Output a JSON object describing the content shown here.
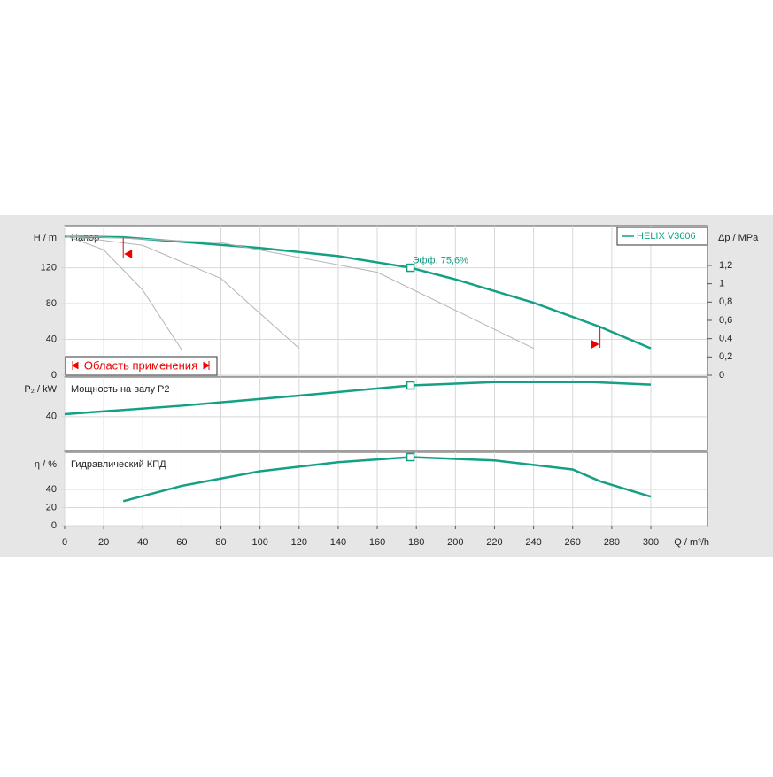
{
  "chart_data": [
    {
      "type": "line",
      "title": "Напор",
      "ylabel": "H / m",
      "y2label": "Δp / MPa",
      "xlim": [
        0,
        329
      ],
      "ylim": [
        0,
        167
      ],
      "yticks": [
        0,
        40,
        80,
        120
      ],
      "y2lim": [
        0,
        1.635
      ],
      "y2ticks": [
        0,
        {
          "value": 0.2,
          "label": "0,2"
        },
        {
          "value": 0.4,
          "label": "0,4"
        },
        {
          "value": 0.6,
          "label": "0,6"
        },
        {
          "value": 0.8,
          "label": "0,8"
        },
        1,
        {
          "value": 1.2,
          "label": "1,2"
        }
      ],
      "grid": true,
      "legend": "upper right",
      "series": [
        {
          "name": "HELIX V3606",
          "color": "#14a085",
          "x": [
            0,
            30,
            60,
            100,
            140,
            177,
            200,
            240,
            274,
            300
          ],
          "values": [
            155,
            154,
            149,
            142,
            133,
            120,
            107,
            81,
            54,
            30
          ]
        },
        {
          "color": "#b4b4b4",
          "x": [
            0,
            20,
            40,
            60
          ],
          "values": [
            156,
            140,
            95,
            28
          ]
        },
        {
          "color": "#b4b4b4",
          "x": [
            0,
            40,
            80,
            120
          ],
          "values": [
            156,
            145,
            108,
            30
          ]
        },
        {
          "color": "#b4b4b4",
          "x": [
            0,
            80,
            160,
            240
          ],
          "values": [
            156,
            148,
            115,
            30
          ]
        }
      ],
      "marker": {
        "x": 177,
        "y": 120
      },
      "annotation": "Эфф.  75,6%",
      "range": [
        30,
        274
      ],
      "range_label": "Область применения"
    },
    {
      "type": "line",
      "title": "Мощность на валу P2",
      "ylabel": "P₂ / kW",
      "xlim": [
        0,
        329
      ],
      "ylim": [
        0,
        87
      ],
      "yticks": [
        40
      ],
      "grid": true,
      "series": [
        {
          "color": "#14a085",
          "x": [
            0,
            60,
            120,
            177,
            220,
            270,
            300
          ],
          "values": [
            43,
            53,
            65,
            77,
            81,
            81,
            78
          ]
        }
      ],
      "marker": {
        "x": 177,
        "y": 77
      }
    },
    {
      "type": "line",
      "title": "Гидравлический КПД",
      "ylabel": "η / %",
      "xlabel": "Q / m³/h",
      "xlim": [
        0,
        329
      ],
      "ylim": [
        0,
        81
      ],
      "yticks": [
        0,
        20,
        40
      ],
      "xticks": [
        0,
        20,
        40,
        60,
        80,
        100,
        120,
        140,
        160,
        180,
        200,
        220,
        240,
        260,
        280,
        300
      ],
      "grid": true,
      "series": [
        {
          "color": "#14a085",
          "x": [
            30,
            60,
            100,
            140,
            177,
            220,
            260,
            274,
            300
          ],
          "values": [
            27,
            44,
            60,
            70,
            75.6,
            72,
            62,
            49,
            32
          ]
        }
      ],
      "marker": {
        "x": 177,
        "y": 75.6
      }
    }
  ]
}
